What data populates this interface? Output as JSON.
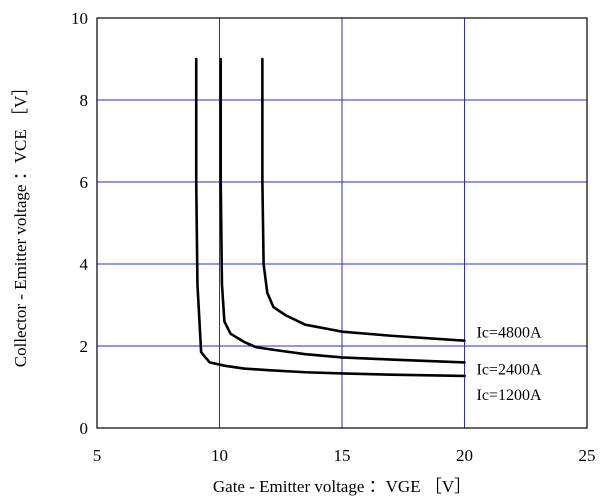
{
  "chart_data": {
    "type": "line",
    "xlabel": "Gate - Emitter voltage ：VGE ［V］",
    "ylabel": "Collector - Emitter voltage ：VCE ［V］",
    "xlim": [
      5,
      25
    ],
    "ylim": [
      0,
      10
    ],
    "x_ticks": [
      5,
      10,
      15,
      20,
      25
    ],
    "y_ticks": [
      0,
      2,
      4,
      6,
      8,
      10
    ],
    "grid": true,
    "colors": {
      "grid": "#2b2bc9",
      "line": "#000000",
      "frame": "#000000"
    },
    "series": [
      {
        "name": "Ic=4800A",
        "points": [
          [
            11.75,
            9.0
          ],
          [
            11.75,
            6.0
          ],
          [
            11.8,
            4.0
          ],
          [
            11.95,
            3.3
          ],
          [
            12.2,
            2.95
          ],
          [
            12.7,
            2.75
          ],
          [
            13.5,
            2.52
          ],
          [
            15.0,
            2.35
          ],
          [
            17.0,
            2.25
          ],
          [
            20.0,
            2.13
          ]
        ]
      },
      {
        "name": "Ic=2400A",
        "points": [
          [
            10.05,
            9.0
          ],
          [
            10.05,
            6.0
          ],
          [
            10.1,
            3.5
          ],
          [
            10.2,
            2.6
          ],
          [
            10.45,
            2.3
          ],
          [
            11.0,
            2.1
          ],
          [
            11.5,
            1.97
          ],
          [
            12.3,
            1.9
          ],
          [
            13.5,
            1.8
          ],
          [
            15.0,
            1.72
          ],
          [
            17.0,
            1.67
          ],
          [
            20.0,
            1.6
          ]
        ]
      },
      {
        "name": "Ic=1200A",
        "points": [
          [
            9.05,
            9.0
          ],
          [
            9.05,
            6.0
          ],
          [
            9.1,
            3.5
          ],
          [
            9.25,
            1.85
          ],
          [
            9.6,
            1.6
          ],
          [
            10.2,
            1.52
          ],
          [
            11.0,
            1.45
          ],
          [
            12.0,
            1.41
          ],
          [
            13.5,
            1.36
          ],
          [
            15.0,
            1.33
          ],
          [
            17.0,
            1.3
          ],
          [
            20.0,
            1.27
          ]
        ]
      }
    ]
  }
}
